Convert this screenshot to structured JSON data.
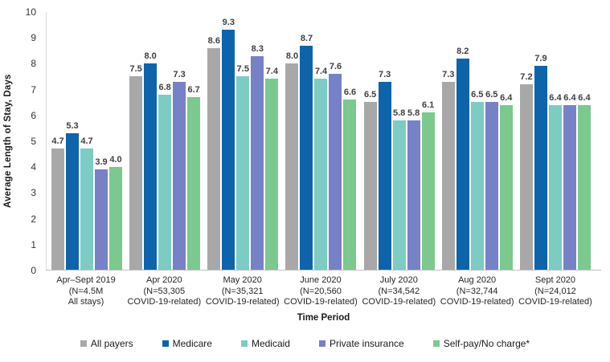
{
  "chart_data": {
    "type": "bar",
    "title": "",
    "ylabel": "Average Length of Stay, Days",
    "xlabel": "Time Period",
    "ylim": [
      0,
      10
    ],
    "yticks": [
      0,
      1,
      2,
      3,
      4,
      5,
      6,
      7,
      8,
      9,
      10
    ],
    "grid": false,
    "legend_position": "bottom",
    "value_label_decimals": 1,
    "categories": [
      {
        "label": "Apr–Sept 2019 (N=4.5M All stays)",
        "lines": [
          "Apr–Sept 2019",
          "(N=4.5M",
          "All stays)"
        ],
        "patterned": true
      },
      {
        "label": "Apr 2020 (N=53,305 COVID-19-related)",
        "lines": [
          "Apr 2020",
          "(N=53,305",
          "COVID-19-related)"
        ],
        "patterned": false
      },
      {
        "label": "May 2020 (N=35,321 COVID-19-related)",
        "lines": [
          "May 2020",
          "(N=35,321",
          "COVID-19-related)"
        ],
        "patterned": false
      },
      {
        "label": "June 2020 (N=20,560 COVID-19-related)",
        "lines": [
          "June 2020",
          "(N=20,560",
          "COVID-19-related)"
        ],
        "patterned": false
      },
      {
        "label": "July 2020 (N=34,542 COVID-19-related)",
        "lines": [
          "July 2020",
          "(N=34,542",
          "COVID-19-related)"
        ],
        "patterned": false
      },
      {
        "label": "Aug 2020 (N=32,744 COVID-19-related)",
        "lines": [
          "Aug 2020",
          "(N=32,744",
          "COVID-19-related)"
        ],
        "patterned": false
      },
      {
        "label": "Sept 2020 (N=24,012 COVID-19-related)",
        "lines": [
          "Sept 2020",
          "(N=24,012",
          "COVID-19-related)"
        ],
        "patterned": false
      }
    ],
    "series": [
      {
        "name": "All payers",
        "color": "#a8a8a8",
        "values": [
          4.7,
          7.5,
          8.6,
          8.0,
          6.5,
          7.3,
          7.2
        ]
      },
      {
        "name": "Medicare",
        "color": "#0e64ab",
        "values": [
          5.3,
          8.0,
          9.3,
          8.7,
          7.3,
          8.2,
          7.9
        ]
      },
      {
        "name": "Medicaid",
        "color": "#7dccc3",
        "values": [
          4.7,
          6.8,
          7.5,
          7.4,
          5.8,
          6.5,
          6.4
        ]
      },
      {
        "name": "Private insurance",
        "color": "#7781c5",
        "values": [
          3.9,
          7.3,
          8.3,
          7.6,
          5.8,
          6.5,
          6.4
        ]
      },
      {
        "name": "Self-pay/No charge*",
        "color": "#7bc98e",
        "values": [
          4.0,
          6.7,
          7.4,
          6.6,
          6.1,
          6.4,
          6.4
        ]
      }
    ],
    "axis_colors": {
      "y_axis_line": "#d9d9d9",
      "baseline": "#c0c0c0"
    }
  }
}
